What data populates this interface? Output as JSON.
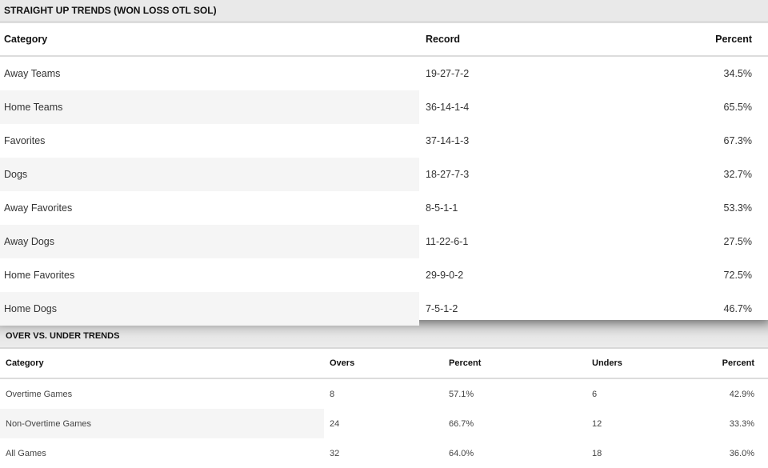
{
  "straight_up": {
    "title": "STRAIGHT UP TRENDS (WON LOSS OTL SOL)",
    "headers": [
      "Category",
      "Record",
      "Percent"
    ],
    "rows": [
      [
        "Away Teams",
        "19-27-7-2",
        "34.5%"
      ],
      [
        "Home Teams",
        "36-14-1-4",
        "65.5%"
      ],
      [
        "Favorites",
        "37-14-1-3",
        "67.3%"
      ],
      [
        "Dogs",
        "18-27-7-3",
        "32.7%"
      ],
      [
        "Away Favorites",
        "8-5-1-1",
        "53.3%"
      ],
      [
        "Away Dogs",
        "11-22-6-1",
        "27.5%"
      ],
      [
        "Home Favorites",
        "29-9-0-2",
        "72.5%"
      ],
      [
        "Home Dogs",
        "7-5-1-2",
        "46.7%"
      ]
    ]
  },
  "over_under": {
    "title": "OVER VS. UNDER TRENDS",
    "headers": [
      "Category",
      "Overs",
      "Percent",
      "Unders",
      "Percent"
    ],
    "rows": [
      [
        "Overtime Games",
        "8",
        "57.1%",
        "6",
        "42.9%"
      ],
      [
        "Non-Overtime Games",
        "24",
        "66.7%",
        "12",
        "33.3%"
      ],
      [
        "All Games",
        "32",
        "64.0%",
        "18",
        "36.0%"
      ]
    ]
  }
}
